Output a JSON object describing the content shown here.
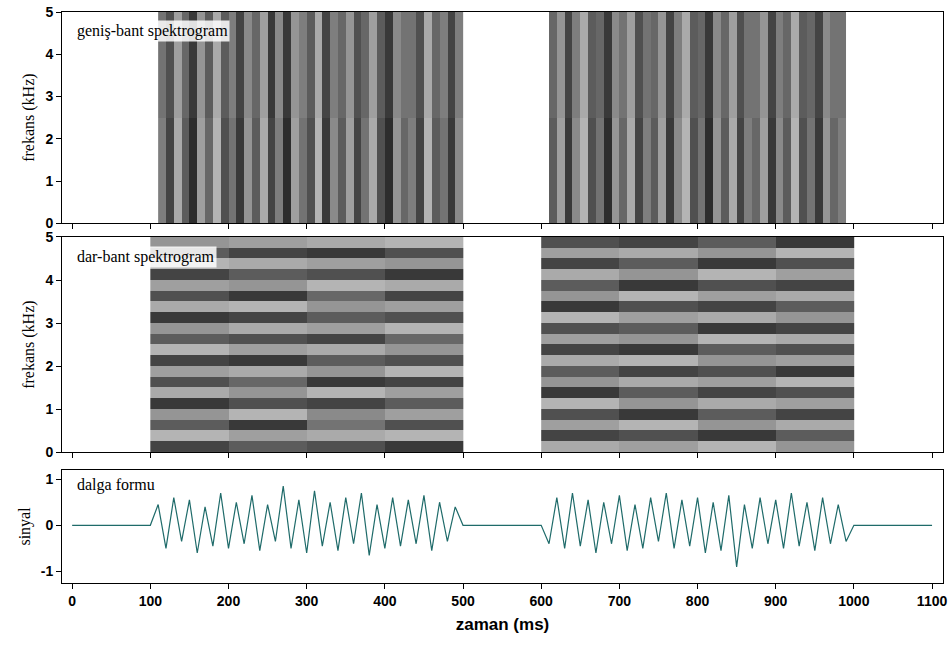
{
  "chart_data": [
    {
      "type": "heatmap",
      "title": "geniş-bant spektrogram",
      "y_label": "frekans (kHz)",
      "xlim": [
        -13,
        1114
      ],
      "xticks": [
        0,
        100,
        200,
        300,
        400,
        500,
        600,
        700,
        800,
        900,
        1000,
        1100
      ],
      "ylim": [
        0,
        5
      ],
      "yticks": [
        0,
        1,
        2,
        3,
        4,
        5
      ],
      "zlim": [
        0,
        1
      ],
      "grid": false,
      "tick_labels": "y",
      "segments": [
        {
          "x_edges": [
            110,
            120,
            130,
            140,
            150,
            160,
            170,
            180,
            190,
            200,
            210,
            220,
            230,
            240,
            250,
            260,
            270,
            280,
            290,
            300,
            310,
            320,
            330,
            340,
            350,
            360,
            370,
            380,
            390,
            400,
            410,
            420,
            430,
            440,
            450,
            460,
            470,
            480,
            490,
            500
          ],
          "y_edges": [
            0,
            2.5,
            5
          ],
          "z": [
            [
              0.55,
              0.8,
              0.35,
              0.7,
              0.9,
              0.4,
              0.65,
              0.3,
              0.75,
              0.6,
              0.85,
              0.45,
              0.7,
              0.35,
              0.8,
              0.55,
              0.9,
              0.4,
              0.6,
              0.75,
              0.3,
              0.85,
              0.5,
              0.7,
              0.4,
              0.8,
              0.6,
              0.35,
              0.75,
              0.9,
              0.45,
              0.65,
              0.55,
              0.8,
              0.3,
              0.7,
              0.6,
              0.85,
              0.5
            ],
            [
              0.6,
              0.75,
              0.4,
              0.65,
              0.85,
              0.45,
              0.7,
              0.35,
              0.7,
              0.55,
              0.8,
              0.5,
              0.65,
              0.4,
              0.85,
              0.5,
              0.85,
              0.45,
              0.55,
              0.7,
              0.35,
              0.8,
              0.55,
              0.65,
              0.45,
              0.75,
              0.65,
              0.4,
              0.7,
              0.85,
              0.5,
              0.6,
              0.6,
              0.75,
              0.35,
              0.65,
              0.55,
              0.8,
              0.55
            ]
          ]
        },
        {
          "x_edges": [
            610,
            620,
            630,
            640,
            650,
            660,
            670,
            680,
            690,
            700,
            710,
            720,
            730,
            740,
            750,
            760,
            770,
            780,
            790,
            800,
            810,
            820,
            830,
            840,
            850,
            860,
            870,
            880,
            890,
            900,
            910,
            920,
            930,
            940,
            950,
            960,
            970,
            980,
            990
          ],
          "y_edges": [
            0,
            2.5,
            5
          ],
          "z": [
            [
              0.7,
              0.4,
              0.85,
              0.5,
              0.3,
              0.75,
              0.6,
              0.9,
              0.45,
              0.65,
              0.35,
              0.8,
              0.55,
              0.7,
              0.4,
              0.85,
              0.5,
              0.3,
              0.75,
              0.6,
              0.9,
              0.45,
              0.7,
              0.35,
              0.8,
              0.55,
              0.65,
              0.4,
              0.85,
              0.5,
              0.7,
              0.3,
              0.75,
              0.6,
              0.85,
              0.45,
              0.65,
              0.55
            ],
            [
              0.65,
              0.45,
              0.8,
              0.55,
              0.35,
              0.7,
              0.65,
              0.85,
              0.5,
              0.6,
              0.4,
              0.75,
              0.6,
              0.65,
              0.45,
              0.8,
              0.55,
              0.35,
              0.7,
              0.65,
              0.85,
              0.5,
              0.65,
              0.4,
              0.75,
              0.6,
              0.6,
              0.45,
              0.8,
              0.55,
              0.65,
              0.35,
              0.7,
              0.65,
              0.8,
              0.5,
              0.6,
              0.6
            ]
          ]
        }
      ]
    },
    {
      "type": "heatmap",
      "title": "dar-bant spektrogram",
      "y_label": "frekans (kHz)",
      "xlim": [
        -13,
        1114
      ],
      "xticks": [
        0,
        100,
        200,
        300,
        400,
        500,
        600,
        700,
        800,
        900,
        1000,
        1100
      ],
      "ylim": [
        0,
        5
      ],
      "yticks": [
        0,
        1,
        2,
        3,
        4,
        5
      ],
      "zlim": [
        0,
        1
      ],
      "grid": false,
      "tick_labels": "y",
      "segments": [
        {
          "x_edges": [
            100,
            200,
            300,
            400,
            500
          ],
          "y_edges": [
            0,
            0.25,
            0.5,
            0.75,
            1,
            1.25,
            1.5,
            1.75,
            2,
            2.25,
            2.5,
            2.75,
            3,
            3.25,
            3.5,
            3.75,
            4,
            4.25,
            4.5,
            4.75,
            5
          ],
          "z": [
            [
              0.8,
              0.7,
              0.75,
              0.85
            ],
            [
              0.3,
              0.4,
              0.35,
              0.3
            ],
            [
              0.7,
              0.85,
              0.6,
              0.75
            ],
            [
              0.45,
              0.3,
              0.5,
              0.4
            ],
            [
              0.85,
              0.75,
              0.8,
              0.7
            ],
            [
              0.35,
              0.45,
              0.3,
              0.4
            ],
            [
              0.75,
              0.65,
              0.85,
              0.8
            ],
            [
              0.4,
              0.35,
              0.45,
              0.3
            ],
            [
              0.8,
              0.85,
              0.7,
              0.75
            ],
            [
              0.3,
              0.4,
              0.35,
              0.45
            ],
            [
              0.7,
              0.75,
              0.8,
              0.65
            ],
            [
              0.45,
              0.35,
              0.4,
              0.3
            ],
            [
              0.85,
              0.8,
              0.7,
              0.75
            ],
            [
              0.35,
              0.3,
              0.45,
              0.4
            ],
            [
              0.75,
              0.85,
              0.65,
              0.8
            ],
            [
              0.4,
              0.45,
              0.3,
              0.35
            ],
            [
              0.8,
              0.7,
              0.75,
              0.85
            ],
            [
              0.3,
              0.35,
              0.4,
              0.45
            ],
            [
              0.7,
              0.8,
              0.85,
              0.75
            ],
            [
              0.45,
              0.4,
              0.35,
              0.3
            ]
          ]
        },
        {
          "x_edges": [
            600,
            700,
            800,
            900,
            1000
          ],
          "y_edges": [
            0,
            0.25,
            0.5,
            0.75,
            1,
            1.25,
            1.5,
            1.75,
            2,
            2.25,
            2.5,
            2.75,
            3,
            3.25,
            3.5,
            3.75,
            4,
            4.25,
            4.5,
            4.75,
            5
          ],
          "z": [
            [
              0.35,
              0.4,
              0.3,
              0.45
            ],
            [
              0.8,
              0.75,
              0.85,
              0.7
            ],
            [
              0.4,
              0.3,
              0.45,
              0.35
            ],
            [
              0.75,
              0.85,
              0.7,
              0.8
            ],
            [
              0.3,
              0.45,
              0.35,
              0.4
            ],
            [
              0.85,
              0.7,
              0.8,
              0.75
            ],
            [
              0.45,
              0.35,
              0.4,
              0.3
            ],
            [
              0.7,
              0.8,
              0.75,
              0.85
            ],
            [
              0.35,
              0.3,
              0.45,
              0.4
            ],
            [
              0.8,
              0.85,
              0.7,
              0.75
            ],
            [
              0.4,
              0.45,
              0.3,
              0.35
            ],
            [
              0.75,
              0.7,
              0.85,
              0.8
            ],
            [
              0.3,
              0.4,
              0.35,
              0.45
            ],
            [
              0.85,
              0.75,
              0.8,
              0.7
            ],
            [
              0.45,
              0.3,
              0.4,
              0.35
            ],
            [
              0.7,
              0.85,
              0.75,
              0.8
            ],
            [
              0.35,
              0.45,
              0.3,
              0.4
            ],
            [
              0.8,
              0.7,
              0.85,
              0.75
            ],
            [
              0.4,
              0.35,
              0.45,
              0.3
            ],
            [
              0.75,
              0.8,
              0.7,
              0.85
            ]
          ]
        }
      ]
    },
    {
      "type": "line",
      "title": "dalga formu",
      "x_label": "zaman (ms)",
      "y_label": "sinyal",
      "xlim": [
        -13,
        1114
      ],
      "xticks": [
        0,
        100,
        200,
        300,
        400,
        500,
        600,
        700,
        800,
        900,
        1000,
        1100
      ],
      "ylim": [
        -1.25,
        1.2
      ],
      "yticks": [
        -1,
        0,
        1
      ],
      "grid": false,
      "color": "#1f6b6a",
      "x": [
        0,
        100,
        110,
        120,
        130,
        140,
        150,
        160,
        170,
        180,
        190,
        200,
        210,
        220,
        230,
        240,
        250,
        260,
        270,
        280,
        290,
        300,
        310,
        320,
        330,
        340,
        350,
        360,
        370,
        380,
        390,
        400,
        410,
        420,
        430,
        440,
        450,
        460,
        470,
        480,
        490,
        500,
        600,
        610,
        620,
        630,
        640,
        650,
        660,
        670,
        680,
        690,
        700,
        710,
        720,
        730,
        740,
        750,
        760,
        770,
        780,
        790,
        800,
        810,
        820,
        830,
        840,
        850,
        860,
        870,
        880,
        890,
        900,
        910,
        920,
        930,
        940,
        950,
        960,
        970,
        980,
        990,
        1000,
        1100
      ],
      "values": [
        0,
        0,
        0.45,
        -0.5,
        0.6,
        -0.35,
        0.55,
        -0.6,
        0.4,
        -0.45,
        0.7,
        -0.5,
        0.5,
        -0.4,
        0.65,
        -0.55,
        0.45,
        -0.35,
        0.85,
        -0.5,
        0.55,
        -0.6,
        0.75,
        -0.45,
        0.5,
        -0.55,
        0.6,
        -0.4,
        0.7,
        -0.65,
        0.45,
        -0.5,
        0.6,
        -0.45,
        0.55,
        -0.4,
        0.65,
        -0.55,
        0.5,
        -0.35,
        0.4,
        0,
        0,
        -0.4,
        0.6,
        -0.5,
        0.7,
        -0.45,
        0.55,
        -0.6,
        0.5,
        -0.4,
        0.65,
        -0.55,
        0.45,
        -0.5,
        0.6,
        -0.35,
        0.7,
        -0.5,
        0.55,
        -0.45,
        0.6,
        -0.6,
        0.5,
        -0.55,
        0.65,
        -0.9,
        0.45,
        -0.5,
        0.6,
        -0.4,
        0.55,
        -0.5,
        0.7,
        -0.45,
        0.5,
        -0.55,
        0.6,
        -0.4,
        0.45,
        -0.35,
        0,
        0
      ]
    }
  ]
}
